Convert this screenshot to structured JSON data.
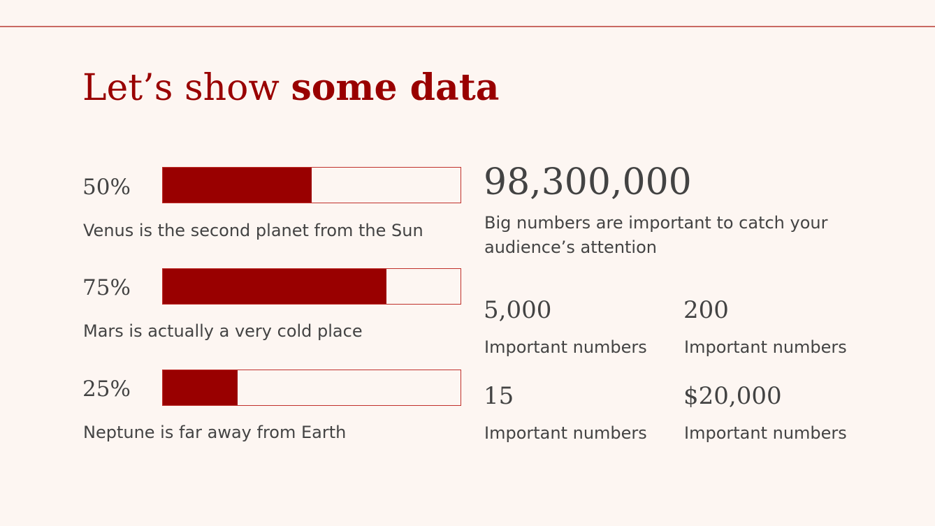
{
  "title": {
    "regular": "Let’s show ",
    "bold": "some data"
  },
  "progress_items": [
    {
      "percent_label": "50%",
      "fraction": 0.5,
      "caption": "Venus is the second planet from the Sun"
    },
    {
      "percent_label": "75%",
      "fraction": 0.75,
      "caption": "Mars is actually a very cold place"
    },
    {
      "percent_label": "25%",
      "fraction": 0.25,
      "caption": "Neptune is far away from Earth"
    }
  ],
  "big_stat": {
    "value": "98,300,000",
    "description": "Big numbers are important to catch your audience’s attention"
  },
  "stats": [
    {
      "value": "5,000",
      "label": "Important numbers"
    },
    {
      "value": "200",
      "label": "Important numbers"
    },
    {
      "value": "15",
      "label": "Important numbers"
    },
    {
      "value": "$20,000",
      "label": "Important numbers"
    }
  ],
  "colors": {
    "accent": "#990000",
    "bar_border": "#c0302b",
    "rule": "#c96a63",
    "background": "#fdf6f2",
    "text": "#434343"
  }
}
